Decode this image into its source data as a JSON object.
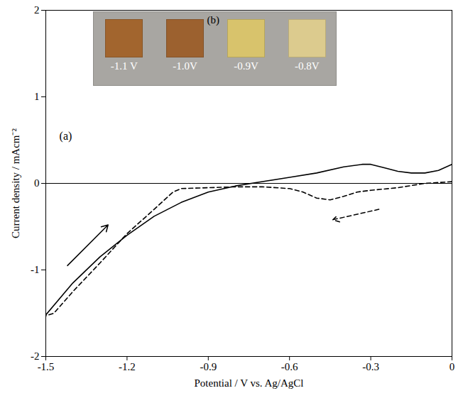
{
  "chart_data": {
    "type": "line",
    "x_label": "Potential / V vs. Ag/AgCl",
    "y_label": "Current density / mAcm⁻²",
    "xlim": [
      -1.5,
      0
    ],
    "xticks": [
      -1.5,
      -1.2,
      -0.9,
      -0.6,
      -0.3,
      0
    ],
    "ylim": [
      -2,
      2
    ],
    "yticks": [
      -2,
      -1,
      0,
      1,
      2
    ],
    "grid": false,
    "reference_lines": [
      {
        "y": 0
      }
    ],
    "series": [
      {
        "color": "#000000",
        "line_style": "solid",
        "x": [
          -1.5,
          -1.4,
          -1.3,
          -1.2,
          -1.1,
          -1.0,
          -0.9,
          -0.8,
          -0.7,
          -0.6,
          -0.5,
          -0.4,
          -0.33,
          -0.3,
          -0.25,
          -0.2,
          -0.15,
          -0.1,
          -0.05,
          0
        ],
        "values": [
          -1.52,
          -1.15,
          -0.85,
          -0.6,
          -0.38,
          -0.22,
          -0.1,
          -0.03,
          0.02,
          0.07,
          0.12,
          0.19,
          0.22,
          0.22,
          0.18,
          0.14,
          0.12,
          0.12,
          0.15,
          0.22
        ]
      },
      {
        "color": "#000000",
        "line_style": "dashed",
        "x": [
          0,
          -0.1,
          -0.2,
          -0.3,
          -0.35,
          -0.4,
          -0.45,
          -0.5,
          -0.55,
          -0.6,
          -0.7,
          -0.8,
          -0.9,
          -1.0,
          -1.03,
          -1.1,
          -1.2,
          -1.3,
          -1.4,
          -1.47,
          -1.5
        ],
        "values": [
          0.02,
          0,
          -0.05,
          -0.08,
          -0.1,
          -0.15,
          -0.19,
          -0.17,
          -0.1,
          -0.06,
          -0.04,
          -0.04,
          -0.05,
          -0.06,
          -0.1,
          -0.3,
          -0.58,
          -0.92,
          -1.25,
          -1.5,
          -1.53
        ]
      }
    ],
    "arrows": [
      {
        "x1": -1.42,
        "y1": -0.95,
        "x2": -1.27,
        "y2": -0.48,
        "line_style": "solid"
      },
      {
        "x1": -0.27,
        "y1": -0.3,
        "x2": -0.44,
        "y2": -0.42,
        "line_style": "dashed"
      }
    ],
    "annotations": [
      {
        "text": "(a)",
        "x": -1.45,
        "y": 0.55
      }
    ],
    "inset": {
      "label": "(b)",
      "samples": [
        {
          "label": "-1.1 V",
          "color": "#a2652e"
        },
        {
          "label": "-1.0V",
          "color": "#9c612f"
        },
        {
          "label": "-0.9V",
          "color": "#d8c36c"
        },
        {
          "label": "-0.8V",
          "color": "#dccb8e"
        }
      ]
    }
  }
}
